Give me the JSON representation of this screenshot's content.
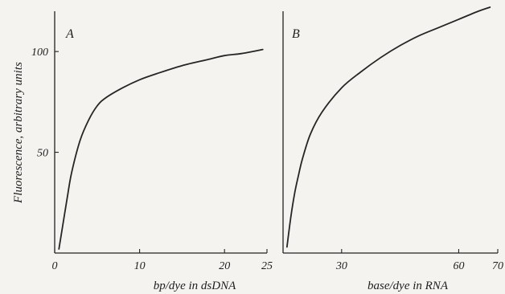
{
  "chart_data": [
    {
      "type": "line",
      "panel_label": "A",
      "title": "",
      "xlabel": "bp/dye in dsDNA",
      "ylabel": "Fluorescence, arbitrary units",
      "xlim": [
        0,
        25
      ],
      "ylim": [
        0,
        120
      ],
      "x_ticks": [
        0,
        10,
        20,
        25
      ],
      "x_tick_labels": [
        "0",
        "10",
        "20",
        "25"
      ],
      "y_ticks": [
        50,
        100
      ],
      "y_tick_labels": [
        "50",
        "100"
      ],
      "grid": false,
      "legend": "none",
      "series": [
        {
          "x": [
            0.5,
            1.0,
            1.5,
            2.0,
            3.0,
            4.0,
            5.0,
            6.0,
            8.0,
            10.0,
            12.0,
            15.0,
            18.0,
            20.0,
            22.0,
            24.5
          ],
          "y": [
            2,
            15,
            28,
            40,
            56,
            66,
            73,
            77,
            82,
            86,
            89,
            93,
            96,
            98,
            99,
            101
          ]
        }
      ]
    },
    {
      "type": "line",
      "panel_label": "B",
      "title": "",
      "xlabel": "base/dye in RNA",
      "ylabel": "",
      "xlim": [
        15,
        70
      ],
      "ylim": [
        0,
        120
      ],
      "x_ticks": [
        30,
        60,
        70
      ],
      "x_tick_labels": [
        "30",
        "60",
        "70"
      ],
      "y_ticks": [],
      "y_tick_labels": [],
      "grid": false,
      "legend": "none",
      "series": [
        {
          "x": [
            16.0,
            17.0,
            18.0,
            19.0,
            20.0,
            22.0,
            25.0,
            30.0,
            35.0,
            40.0,
            45.0,
            50.0,
            55.0,
            60.0,
            65.0,
            68.0
          ],
          "y": [
            3,
            18,
            30,
            39,
            47,
            59,
            70,
            82,
            90,
            97,
            103,
            108,
            112,
            116,
            120,
            122
          ]
        }
      ]
    }
  ]
}
